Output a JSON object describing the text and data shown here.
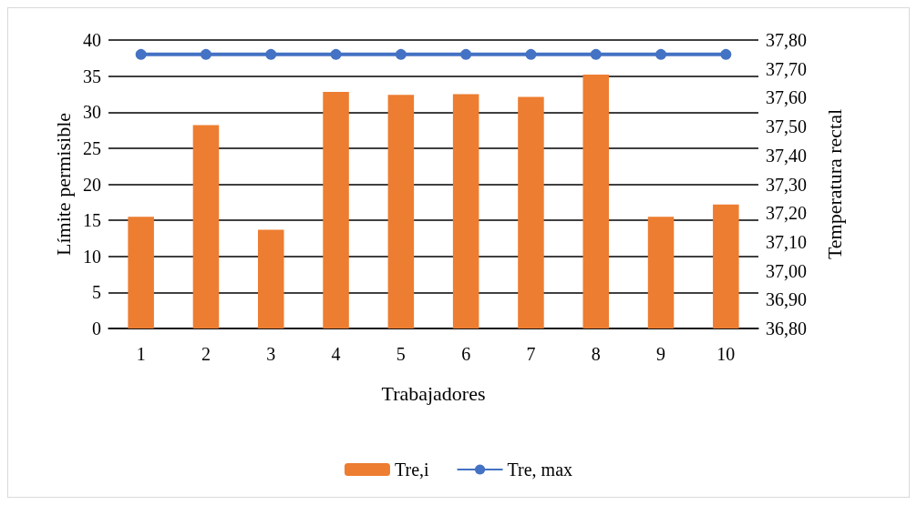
{
  "chart_data": {
    "type": "bar",
    "xlabel": "Trabajadores",
    "ylabel": "Límite permisible",
    "y2label": "Temperatura rectal",
    "categories": [
      "1",
      "2",
      "3",
      "4",
      "5",
      "6",
      "7",
      "8",
      "9",
      "10"
    ],
    "series": [
      {
        "name": "Tre,i",
        "color": "#ed7d31",
        "values": [
          15.5,
          28.2,
          13.7,
          32.8,
          32.4,
          32.5,
          32.1,
          35.2,
          15.5,
          17.2
        ]
      },
      {
        "name": "Tre, max",
        "type": "line",
        "color": "#4472c4",
        "marker": "circle",
        "values": [
          38,
          38,
          38,
          38,
          38,
          38,
          38,
          38,
          38,
          38
        ]
      }
    ],
    "ylim": [
      0,
      40
    ],
    "yticks": [
      0,
      5,
      10,
      15,
      20,
      25,
      30,
      35,
      40
    ],
    "y2lim": [
      36.8,
      37.8
    ],
    "y2ticks": [
      {
        "value": 36.8,
        "label": "36,80"
      },
      {
        "value": 36.9,
        "label": "36,90"
      },
      {
        "value": 37.0,
        "label": "37,00"
      },
      {
        "value": 37.1,
        "label": "37,10"
      },
      {
        "value": 37.2,
        "label": "37,20"
      },
      {
        "value": 37.3,
        "label": "37,30"
      },
      {
        "value": 37.4,
        "label": "37,40"
      },
      {
        "value": 37.5,
        "label": "37,50"
      },
      {
        "value": 37.6,
        "label": "37,60"
      },
      {
        "value": 37.7,
        "label": "37,70"
      },
      {
        "value": 37.8,
        "label": "37,80"
      }
    ],
    "grid": "y",
    "legend": "bottom"
  }
}
